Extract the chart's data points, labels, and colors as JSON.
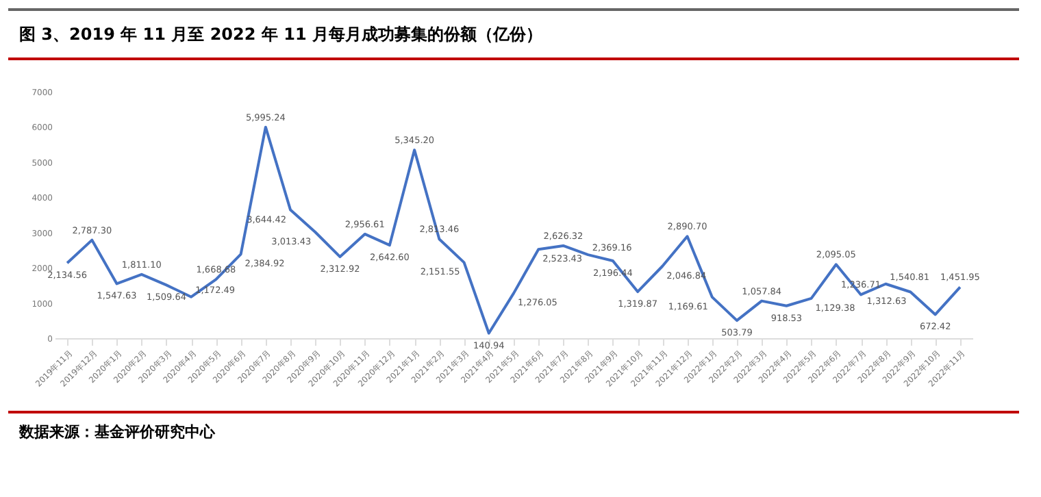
{
  "chart_data": {
    "type": "line",
    "title": "图 3、2019 年 11 月至 2022 年 11 月每月成功募集的份额（亿份）",
    "categories": [
      "2019年11月",
      "2019年12月",
      "2020年1月",
      "2020年2月",
      "2020年3月",
      "2020年4月",
      "2020年5月",
      "2020年6月",
      "2020年7月",
      "2020年8月",
      "2020年9月",
      "2020年10月",
      "2020年11月",
      "2020年12月",
      "2021年1月",
      "2021年2月",
      "2021年3月",
      "2021年4月",
      "2021年5月",
      "2021年6月",
      "2021年7月",
      "2021年8月",
      "2021年9月",
      "2021年10月",
      "2021年11月",
      "2021年12月",
      "2022年1月",
      "2022年2月",
      "2022年3月",
      "2022年4月",
      "2022年5月",
      "2022年6月",
      "2022年7月",
      "2022年8月",
      "2022年9月",
      "2022年10月",
      "2022年11月"
    ],
    "series": [
      {
        "color": "#4472c4",
        "values": [
          2134.56,
          2787.3,
          1547.63,
          1811.1,
          1509.64,
          1172.49,
          1668.68,
          2384.92,
          5995.24,
          3644.42,
          3013.43,
          2312.92,
          2956.61,
          2642.6,
          5345.2,
          2813.46,
          2151.55,
          140.94,
          1276.05,
          2523.43,
          2626.32,
          2369.16,
          2196.44,
          1319.87,
          2046.84,
          2890.7,
          1169.61,
          503.79,
          1057.84,
          918.53,
          1129.38,
          2095.05,
          1236.71,
          1540.81,
          1312.63,
          672.42,
          1451.95
        ],
        "value_labels": [
          "2,134.56",
          "2,787.30",
          "1,547.63",
          "1,811.10",
          "1,509.64",
          "1,172.49",
          "1,668.68",
          "2,384.92",
          "5,995.24",
          "3,644.42",
          "3,013.43",
          "2,312.92",
          "2,956.61",
          "2,642.60",
          "5,345.20",
          "2,813.46",
          "2,151.55",
          "140.94",
          "1,276.05",
          "2,523.43",
          "2,626.32",
          "2,369.16",
          "2,196.44",
          "1,319.87",
          "2,046.84",
          "2,890.70",
          "1,169.61",
          "503.79",
          "1,057.84",
          "918.53",
          "1,129.38",
          "2,095.05",
          "1,236.71",
          "1,540.81",
          "1,312.63",
          "672.42",
          "1,451.95"
        ]
      }
    ],
    "ylim": [
      0,
      7000
    ],
    "yticks": [
      0,
      1000,
      2000,
      3000,
      4000,
      5000,
      6000,
      7000
    ],
    "grid": false,
    "marker": "none",
    "line_style": "solid",
    "annotations": [
      "数据来源：基金评价研究中心"
    ]
  }
}
